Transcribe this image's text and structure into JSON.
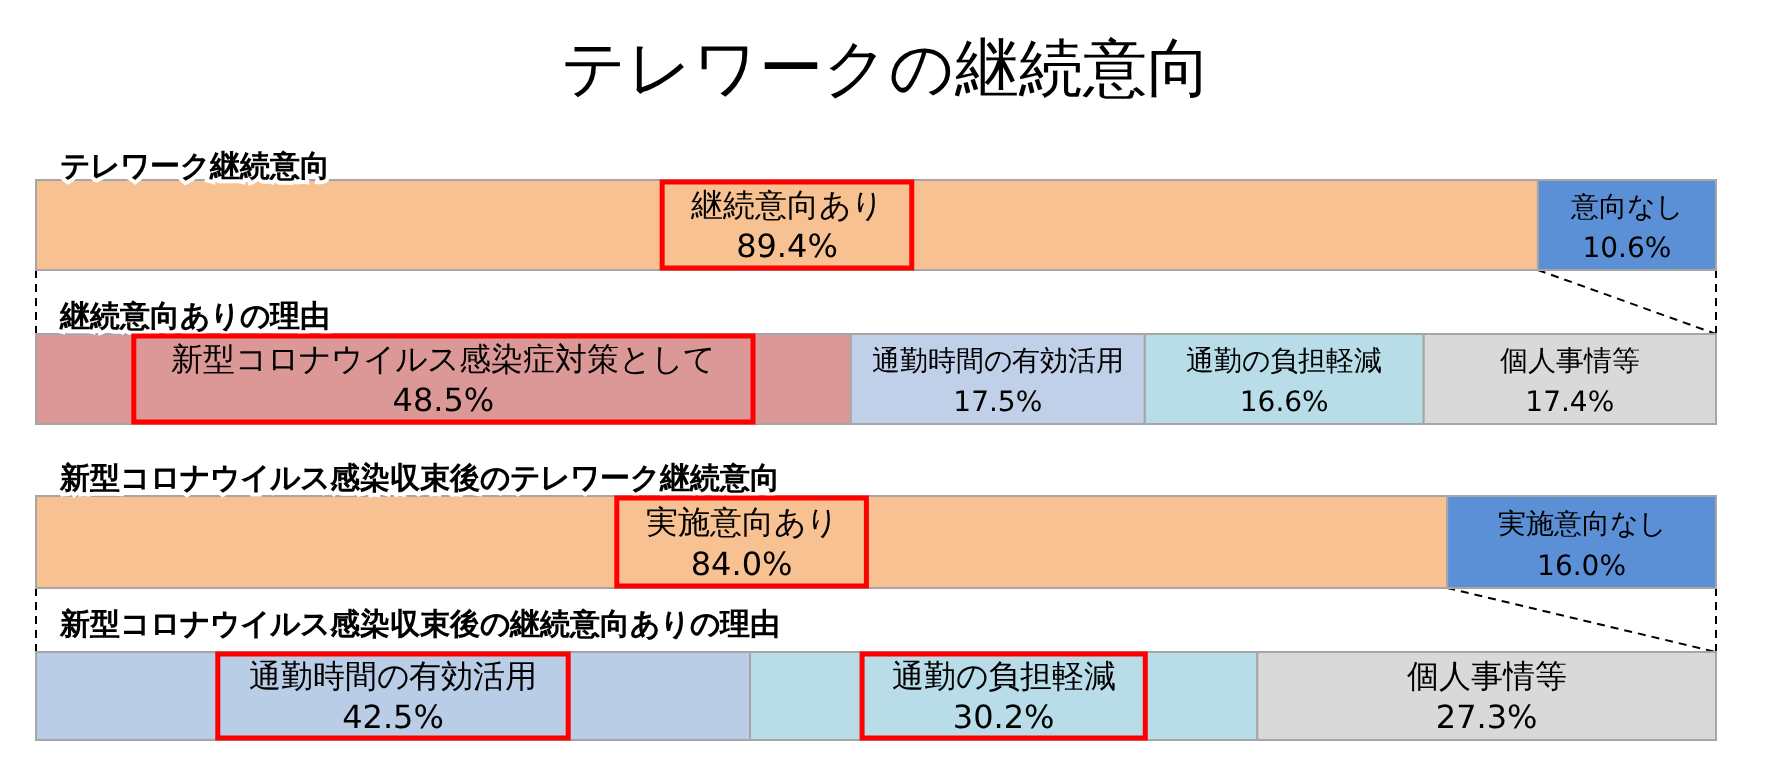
{
  "chart_data": [
    {
      "type": "bar",
      "orientation": "horizontal",
      "stacked": true,
      "title": "テレワークの継続意向",
      "subtitle": "テレワーク継続意向",
      "categories": [
        null
      ],
      "series": [
        {
          "name": "継続意向あり",
          "color": "#f8c192",
          "values": [
            89.4
          ],
          "value_labels": [
            "89.4%"
          ]
        },
        {
          "name": "意向なし",
          "color": "#5b8fd6",
          "values": [
            10.6
          ],
          "value_labels": [
            "10.6%"
          ]
        }
      ]
    },
    {
      "type": "bar",
      "orientation": "horizontal",
      "stacked": true,
      "subtitle": "継続意向ありの理由",
      "categories": [
        null
      ],
      "series": [
        {
          "name": "新型コロナウイルス感染症対策として",
          "color": "#dc9896",
          "values": [
            48.5
          ],
          "value_labels": [
            "48.5%"
          ]
        },
        {
          "name": "通勤時間の有効活用",
          "color": "#bfd0e8",
          "values": [
            17.5
          ],
          "value_labels": [
            "17.5%"
          ]
        },
        {
          "name": "通勤の負担軽減",
          "color": "#b8dde8",
          "values": [
            16.6
          ],
          "value_labels": [
            "16.6%"
          ]
        },
        {
          "name": "個人事情等",
          "color": "#d9d9d9",
          "values": [
            17.4
          ],
          "value_labels": [
            "17.4%"
          ]
        }
      ]
    },
    {
      "type": "bar",
      "orientation": "horizontal",
      "stacked": true,
      "subtitle": "新型コロナウイルス感染収束後のテレワーク継続意向",
      "categories": [
        null
      ],
      "series": [
        {
          "name": "実施意向あり",
          "color": "#f8c192",
          "values": [
            84.0
          ],
          "value_labels": [
            "84.0%"
          ]
        },
        {
          "name": "実施意向なし",
          "color": "#5b8fd6",
          "values": [
            16.0
          ],
          "value_labels": [
            "16.0%"
          ]
        }
      ]
    },
    {
      "type": "bar",
      "orientation": "horizontal",
      "stacked": true,
      "subtitle": "新型コロナウイルス感染収束後の継続意向ありの理由",
      "categories": [
        null
      ],
      "series": [
        {
          "name": "通勤時間の有効活用",
          "color": "#bacde6",
          "values": [
            42.5
          ],
          "value_labels": [
            "42.5%"
          ]
        },
        {
          "name": "通勤の負担軽減",
          "color": "#b8dde8",
          "values": [
            30.2
          ],
          "value_labels": [
            "30.2%"
          ]
        },
        {
          "name": "個人事情等",
          "color": "#d9d9d9",
          "values": [
            27.3
          ],
          "value_labels": [
            "27.3%"
          ]
        }
      ]
    }
  ]
}
